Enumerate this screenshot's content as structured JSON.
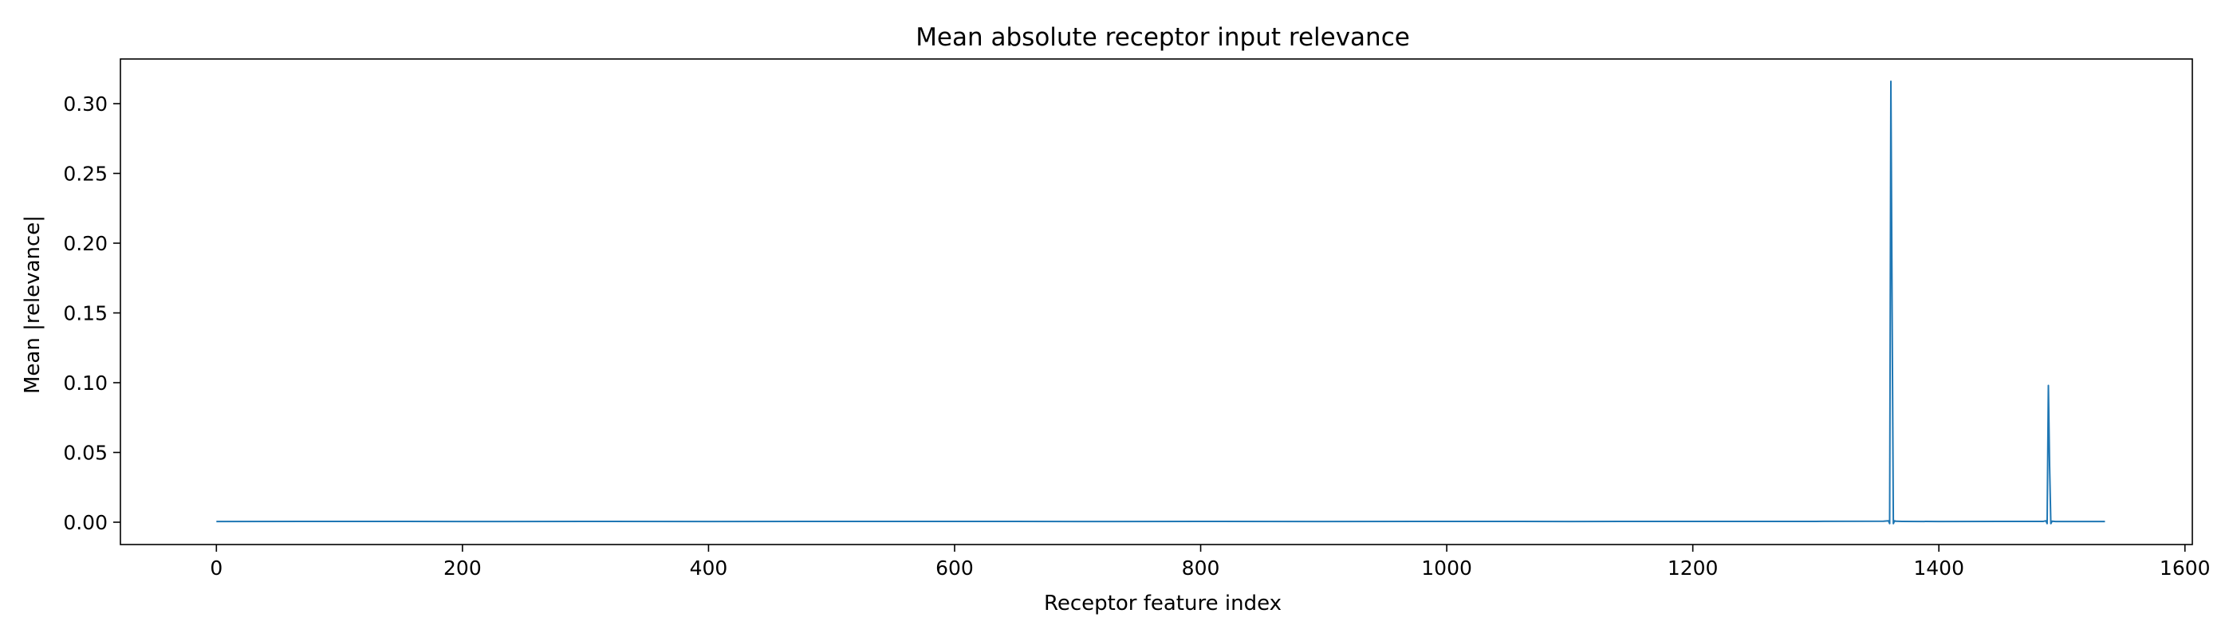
{
  "chart_data": {
    "type": "line",
    "title": "Mean absolute receptor input relevance",
    "xlabel": "Receptor feature index",
    "ylabel": "Mean |relevance|",
    "xlim": [
      -78,
      1606
    ],
    "ylim": [
      -0.016,
      0.332
    ],
    "xticks": [
      0,
      200,
      400,
      600,
      800,
      1000,
      1200,
      1400,
      1600
    ],
    "xtick_labels": [
      "0",
      "200",
      "400",
      "600",
      "800",
      "1000",
      "1200",
      "1400",
      "1600"
    ],
    "yticks": [
      0.0,
      0.05,
      0.1,
      0.15,
      0.2,
      0.25,
      0.3
    ],
    "ytick_labels": [
      "0.00",
      "0.05",
      "0.10",
      "0.15",
      "0.20",
      "0.25",
      "0.30"
    ],
    "grid": false,
    "legend": "none",
    "line_color": "#1f77b4",
    "series": [
      {
        "x": [
          0,
          100,
          200,
          300,
          400,
          500,
          600,
          700,
          800,
          900,
          1000,
          1100,
          1200,
          1300,
          1355,
          1359,
          1360,
          1361,
          1362,
          1363,
          1364,
          1365,
          1370,
          1400,
          1450,
          1485,
          1487,
          1488,
          1489,
          1490,
          1491,
          1492,
          1495,
          1535
        ],
        "y": [
          0.0005,
          0.0006,
          0.0005,
          0.0006,
          0.0005,
          0.0006,
          0.0006,
          0.0005,
          0.0006,
          0.0005,
          0.0006,
          0.0005,
          0.0006,
          0.0006,
          0.0007,
          0.001,
          -0.001,
          0.316,
          0.15,
          -0.001,
          0.001,
          0.0007,
          0.0006,
          0.0005,
          0.0006,
          0.0006,
          0.001,
          -0.001,
          0.098,
          0.04,
          -0.001,
          0.0007,
          0.0005,
          0.0005
        ]
      }
    ]
  }
}
